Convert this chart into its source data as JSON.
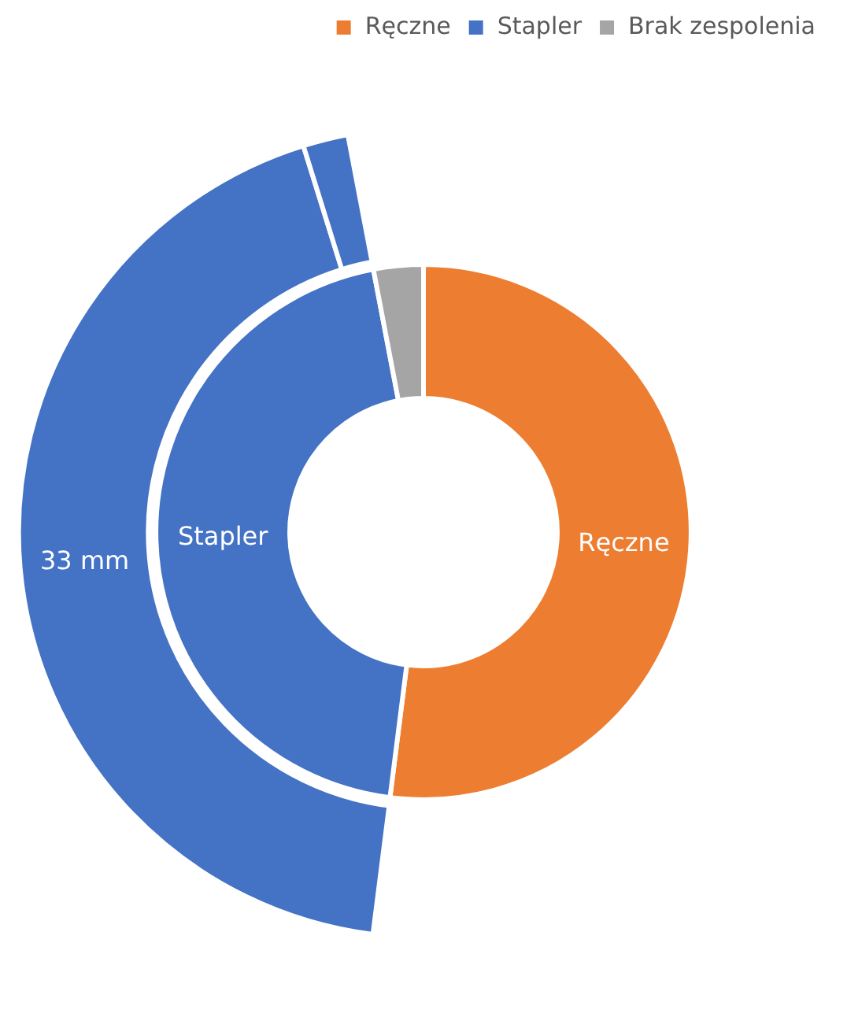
{
  "chart_data": [
    {
      "type": "donut",
      "categories": [
        "Ręczne",
        "Stapler",
        "Brak zespolenia"
      ],
      "values": [
        52,
        45,
        3
      ],
      "colors": [
        "#ed7d31",
        "#4472c4",
        "#a5a5a5"
      ],
      "legend": "top right",
      "annotations": [
        {
          "text": "Stapler",
          "x": "Stapler"
        },
        {
          "text": "Ręczne",
          "x": "Ręczne"
        }
      ]
    },
    {
      "type": "donut",
      "categories": [
        "33 mm",
        null
      ],
      "values": [
        96,
        4
      ],
      "colors": [
        "#4472c4",
        "#4472c4"
      ]
    }
  ]
}
